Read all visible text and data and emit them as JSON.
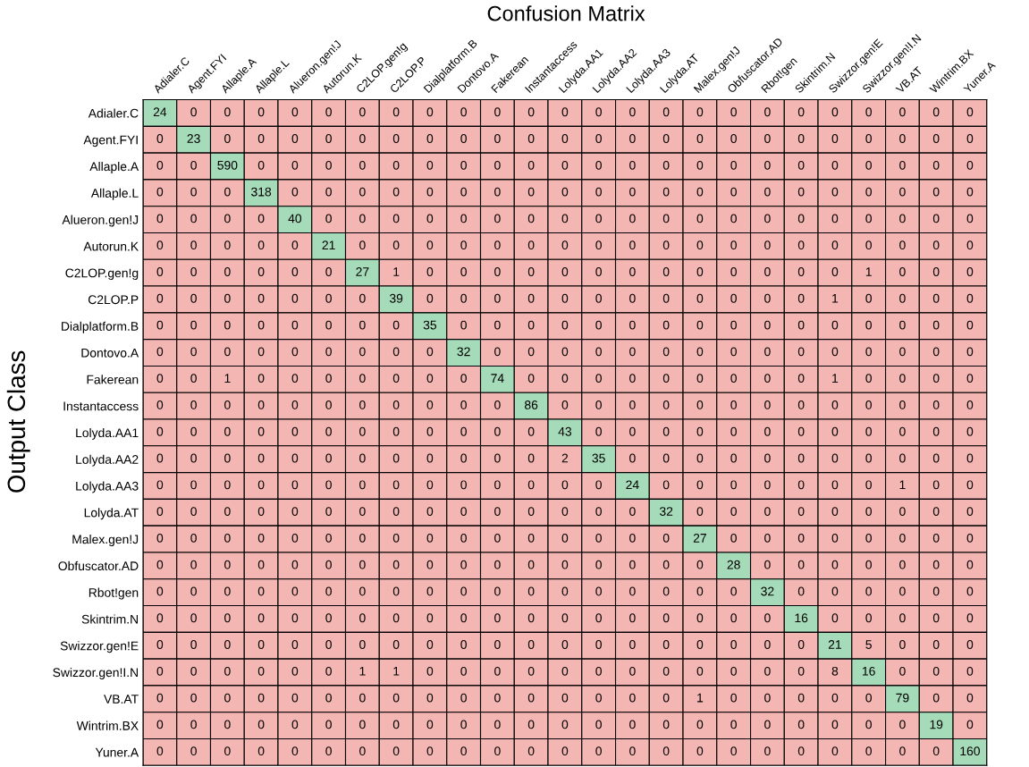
{
  "chart_data": {
    "type": "heatmap",
    "title": "Confusion Matrix",
    "ylabel": "Output Class",
    "categories": [
      "Adialer.C",
      "Agent.FYI",
      "Allaple.A",
      "Allaple.L",
      "Alueron.gen!J",
      "Autorun.K",
      "C2LOP.gen!g",
      "C2LOP.P",
      "Dialplatform.B",
      "Dontovo.A",
      "Fakerean",
      "Instantaccess",
      "Lolyda.AA1",
      "Lolyda.AA2",
      "Lolyda.AA3",
      "Lolyda.AT",
      "Malex.gen!J",
      "Obfuscator.AD",
      "Rbot!gen",
      "Skintrim.N",
      "Swizzor.gen!E",
      "Swizzor.gen!I.N",
      "VB.AT",
      "Wintrim.BX",
      "Yuner.A"
    ],
    "y_categories": [
      "Adialer.C",
      "Agent.FYI",
      "Allaple.A",
      "Allaple.L",
      "Alueron.gen!J",
      "Autorun.K",
      "C2LOP.gen!g",
      "C2LOP.P",
      "Dialplatform.B",
      "Dontovo.A",
      "Fakerean",
      "Instantaccess",
      "Lolyda.AA1",
      "Lolyda.AA2",
      "Lolyda.AA3",
      "Lolyda.AT",
      "Malex.gen!J",
      "Obfuscator.AD",
      "Rbot!gen",
      "Skintrim.N",
      "Swizzor.gen!E",
      "Swizzor.gen!I.N",
      "VB.AT",
      "Wintrim.BX",
      "Yuner.A"
    ],
    "colors": [
      "#f4b6b2",
      "#a5dbb9"
    ],
    "data_labels": true,
    "cells": [
      [
        24,
        0,
        0,
        0,
        0,
        0,
        0,
        0,
        0,
        0,
        0,
        0,
        0,
        0,
        0,
        0,
        0,
        0,
        0,
        0,
        0,
        0,
        0,
        0,
        0
      ],
      [
        0,
        23,
        0,
        0,
        0,
        0,
        0,
        0,
        0,
        0,
        0,
        0,
        0,
        0,
        0,
        0,
        0,
        0,
        0,
        0,
        0,
        0,
        0,
        0,
        0
      ],
      [
        0,
        0,
        590,
        0,
        0,
        0,
        0,
        0,
        0,
        0,
        0,
        0,
        0,
        0,
        0,
        0,
        0,
        0,
        0,
        0,
        0,
        0,
        0,
        0,
        0
      ],
      [
        0,
        0,
        0,
        318,
        0,
        0,
        0,
        0,
        0,
        0,
        0,
        0,
        0,
        0,
        0,
        0,
        0,
        0,
        0,
        0,
        0,
        0,
        0,
        0,
        0
      ],
      [
        0,
        0,
        0,
        0,
        40,
        0,
        0,
        0,
        0,
        0,
        0,
        0,
        0,
        0,
        0,
        0,
        0,
        0,
        0,
        0,
        0,
        0,
        0,
        0,
        0
      ],
      [
        0,
        0,
        0,
        0,
        0,
        21,
        0,
        0,
        0,
        0,
        0,
        0,
        0,
        0,
        0,
        0,
        0,
        0,
        0,
        0,
        0,
        0,
        0,
        0,
        0
      ],
      [
        0,
        0,
        0,
        0,
        0,
        0,
        27,
        1,
        0,
        0,
        0,
        0,
        0,
        0,
        0,
        0,
        0,
        0,
        0,
        0,
        0,
        1,
        0,
        0,
        0
      ],
      [
        0,
        0,
        0,
        0,
        0,
        0,
        0,
        39,
        0,
        0,
        0,
        0,
        0,
        0,
        0,
        0,
        0,
        0,
        0,
        0,
        1,
        0,
        0,
        0,
        0
      ],
      [
        0,
        0,
        0,
        0,
        0,
        0,
        0,
        0,
        35,
        0,
        0,
        0,
        0,
        0,
        0,
        0,
        0,
        0,
        0,
        0,
        0,
        0,
        0,
        0,
        0
      ],
      [
        0,
        0,
        0,
        0,
        0,
        0,
        0,
        0,
        0,
        32,
        0,
        0,
        0,
        0,
        0,
        0,
        0,
        0,
        0,
        0,
        0,
        0,
        0,
        0,
        0
      ],
      [
        0,
        0,
        1,
        0,
        0,
        0,
        0,
        0,
        0,
        0,
        74,
        0,
        0,
        0,
        0,
        0,
        0,
        0,
        0,
        0,
        1,
        0,
        0,
        0,
        0
      ],
      [
        0,
        0,
        0,
        0,
        0,
        0,
        0,
        0,
        0,
        0,
        0,
        86,
        0,
        0,
        0,
        0,
        0,
        0,
        0,
        0,
        0,
        0,
        0,
        0,
        0
      ],
      [
        0,
        0,
        0,
        0,
        0,
        0,
        0,
        0,
        0,
        0,
        0,
        0,
        43,
        0,
        0,
        0,
        0,
        0,
        0,
        0,
        0,
        0,
        0,
        0,
        0
      ],
      [
        0,
        0,
        0,
        0,
        0,
        0,
        0,
        0,
        0,
        0,
        0,
        0,
        2,
        35,
        0,
        0,
        0,
        0,
        0,
        0,
        0,
        0,
        0,
        0,
        0
      ],
      [
        0,
        0,
        0,
        0,
        0,
        0,
        0,
        0,
        0,
        0,
        0,
        0,
        0,
        0,
        24,
        0,
        0,
        0,
        0,
        0,
        0,
        0,
        1,
        0,
        0
      ],
      [
        0,
        0,
        0,
        0,
        0,
        0,
        0,
        0,
        0,
        0,
        0,
        0,
        0,
        0,
        0,
        32,
        0,
        0,
        0,
        0,
        0,
        0,
        0,
        0,
        0
      ],
      [
        0,
        0,
        0,
        0,
        0,
        0,
        0,
        0,
        0,
        0,
        0,
        0,
        0,
        0,
        0,
        0,
        27,
        0,
        0,
        0,
        0,
        0,
        0,
        0,
        0
      ],
      [
        0,
        0,
        0,
        0,
        0,
        0,
        0,
        0,
        0,
        0,
        0,
        0,
        0,
        0,
        0,
        0,
        0,
        28,
        0,
        0,
        0,
        0,
        0,
        0,
        0
      ],
      [
        0,
        0,
        0,
        0,
        0,
        0,
        0,
        0,
        0,
        0,
        0,
        0,
        0,
        0,
        0,
        0,
        0,
        0,
        32,
        0,
        0,
        0,
        0,
        0,
        0
      ],
      [
        0,
        0,
        0,
        0,
        0,
        0,
        0,
        0,
        0,
        0,
        0,
        0,
        0,
        0,
        0,
        0,
        0,
        0,
        0,
        16,
        0,
        0,
        0,
        0,
        0
      ],
      [
        0,
        0,
        0,
        0,
        0,
        0,
        0,
        0,
        0,
        0,
        0,
        0,
        0,
        0,
        0,
        0,
        0,
        0,
        0,
        0,
        21,
        5,
        0,
        0,
        0
      ],
      [
        0,
        0,
        0,
        0,
        0,
        0,
        1,
        1,
        0,
        0,
        0,
        0,
        0,
        0,
        0,
        0,
        0,
        0,
        0,
        0,
        8,
        16,
        0,
        0,
        0
      ],
      [
        0,
        0,
        0,
        0,
        0,
        0,
        0,
        0,
        0,
        0,
        0,
        0,
        0,
        0,
        0,
        0,
        1,
        0,
        0,
        0,
        0,
        0,
        79,
        0,
        0
      ],
      [
        0,
        0,
        0,
        0,
        0,
        0,
        0,
        0,
        0,
        0,
        0,
        0,
        0,
        0,
        0,
        0,
        0,
        0,
        0,
        0,
        0,
        0,
        0,
        19,
        0
      ],
      [
        0,
        0,
        0,
        0,
        0,
        0,
        0,
        0,
        0,
        0,
        0,
        0,
        0,
        0,
        0,
        0,
        0,
        0,
        0,
        0,
        0,
        0,
        0,
        0,
        160
      ]
    ]
  }
}
